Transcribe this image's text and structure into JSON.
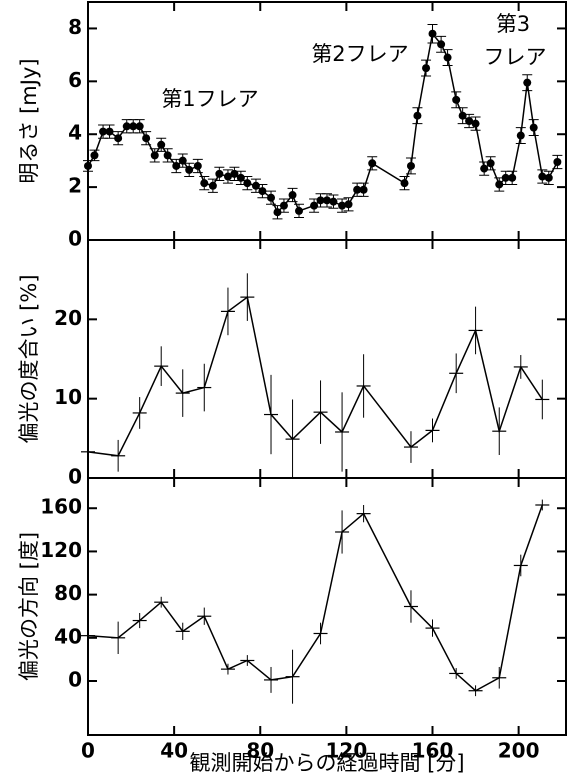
{
  "chart_data": [
    {
      "type": "line",
      "marker": "circle",
      "ylabel": "明るさ [mJy]",
      "annotations": [
        "第1フレア",
        "第2フレア",
        "第3",
        "フレア"
      ],
      "ylim": [
        0,
        9
      ],
      "yticks": [
        0,
        2,
        4,
        6,
        8
      ],
      "x": [
        0,
        3,
        7,
        10,
        14,
        18,
        21,
        24,
        27,
        31,
        34,
        37,
        41,
        44,
        47,
        51,
        54,
        58,
        61,
        65,
        68,
        71,
        74,
        78,
        81,
        85,
        88,
        91,
        95,
        98,
        105,
        108,
        111,
        114,
        118,
        121,
        125,
        128,
        132,
        147,
        150,
        153,
        157,
        160,
        164,
        167,
        171,
        174,
        177,
        180,
        184,
        187,
        191,
        194,
        197,
        201,
        204,
        207,
        211,
        214,
        218
      ],
      "values": [
        2.8,
        3.2,
        4.1,
        4.1,
        3.85,
        4.3,
        4.3,
        4.3,
        3.85,
        3.2,
        3.6,
        3.2,
        2.8,
        3.0,
        2.65,
        2.8,
        2.15,
        2.05,
        2.5,
        2.4,
        2.5,
        2.35,
        2.15,
        2.05,
        1.85,
        1.6,
        1.05,
        1.3,
        1.7,
        1.1,
        1.3,
        1.5,
        1.5,
        1.45,
        1.3,
        1.35,
        1.9,
        1.9,
        2.9,
        2.15,
        2.8,
        4.7,
        6.5,
        7.8,
        7.4,
        6.9,
        5.3,
        4.7,
        4.5,
        4.4,
        2.7,
        2.9,
        2.1,
        2.35,
        2.35,
        3.95,
        5.95,
        4.25,
        2.4,
        2.35,
        2.95
      ],
      "errors": [
        0.2,
        0.2,
        0.25,
        0.25,
        0.25,
        0.25,
        0.25,
        0.25,
        0.25,
        0.25,
        0.25,
        0.25,
        0.25,
        0.25,
        0.25,
        0.25,
        0.25,
        0.25,
        0.25,
        0.25,
        0.25,
        0.25,
        0.25,
        0.25,
        0.25,
        0.25,
        0.25,
        0.25,
        0.25,
        0.25,
        0.25,
        0.25,
        0.25,
        0.25,
        0.25,
        0.25,
        0.25,
        0.25,
        0.25,
        0.25,
        0.3,
        0.3,
        0.3,
        0.35,
        0.3,
        0.3,
        0.3,
        0.3,
        0.25,
        0.25,
        0.25,
        0.25,
        0.25,
        0.25,
        0.25,
        0.3,
        0.3,
        0.3,
        0.25,
        0.25,
        0.25
      ]
    },
    {
      "type": "line",
      "marker": "cross",
      "ylabel": "偏光の度合い [%]",
      "ylim": [
        0,
        30
      ],
      "yticks": [
        0,
        10,
        20
      ],
      "x": [
        0,
        14,
        24,
        34,
        44,
        54,
        65,
        74,
        85,
        95,
        108,
        118,
        128,
        150,
        160,
        171,
        180,
        191,
        201,
        211
      ],
      "values": [
        3.3,
        2.8,
        8.2,
        14.1,
        10.7,
        11.4,
        21.0,
        22.8,
        8.0,
        4.9,
        8.3,
        5.8,
        11.6,
        3.9,
        6.0,
        13.2,
        18.6,
        5.9,
        14.0,
        9.9
      ],
      "errors": [
        2,
        2,
        2,
        2.5,
        3,
        3,
        3,
        3,
        5,
        5,
        4,
        5,
        4,
        2,
        1.5,
        2.5,
        3,
        3,
        1.5,
        2.5
      ]
    },
    {
      "type": "line",
      "marker": "cross",
      "ylabel": "偏光の方向 [度]",
      "xlabel": "観測開始からの経過時間 [分]",
      "xlim": [
        0,
        222
      ],
      "xticks": [
        0,
        40,
        80,
        120,
        160,
        200
      ],
      "ylim": [
        -50,
        188
      ],
      "yticks": [
        0,
        40,
        80,
        120,
        160
      ],
      "x": [
        0,
        14,
        24,
        34,
        44,
        54,
        65,
        74,
        85,
        95,
        108,
        118,
        128,
        150,
        160,
        171,
        180,
        191,
        201,
        211
      ],
      "values": [
        42,
        40,
        56,
        73,
        46,
        60,
        11,
        19,
        1,
        4,
        44,
        138,
        155,
        69,
        49,
        7,
        -9,
        3,
        107,
        163
      ],
      "errors": [
        10,
        15,
        7,
        5,
        8,
        8,
        5,
        5,
        12,
        25,
        10,
        20,
        8,
        15,
        8,
        5,
        5,
        10,
        10,
        5
      ]
    }
  ]
}
